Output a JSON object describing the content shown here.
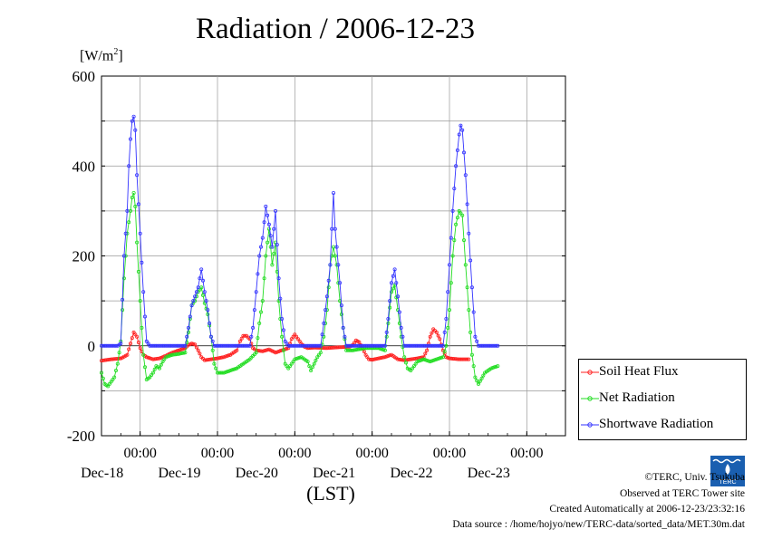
{
  "chart_data": {
    "type": "line",
    "title": "Radiation / 2006-12-23",
    "ylabel": "[W/m2]",
    "xlabel": "(LST)",
    "ylim": [
      -200,
      600
    ],
    "yticks": [
      "600",
      "400",
      "200",
      "0",
      "-200"
    ],
    "xticks": [
      {
        "time": "00:00",
        "date": "Dec-18"
      },
      {
        "time": "00:00",
        "date": "Dec-19"
      },
      {
        "time": "00:00",
        "date": "Dec-20"
      },
      {
        "time": "00:00",
        "date": "Dec-21"
      },
      {
        "time": "00:00",
        "date": "Dec-22"
      },
      {
        "time": "00:00",
        "date": "Dec-23"
      }
    ],
    "x_range_hours": [
      0,
      144
    ],
    "x_unit": "hours since 2006-12-17 12:00 LST",
    "grid": true,
    "legend_position": "bottom-right",
    "series": [
      {
        "name": "Soil Heat Flux",
        "color": "#ff2020",
        "points": [
          [
            0,
            -33
          ],
          [
            3,
            -30
          ],
          [
            6,
            -28
          ],
          [
            8,
            -20
          ],
          [
            9,
            5
          ],
          [
            10,
            30
          ],
          [
            11,
            20
          ],
          [
            12,
            -5
          ],
          [
            13,
            -20
          ],
          [
            14,
            -25
          ],
          [
            16,
            -30
          ],
          [
            18,
            -28
          ],
          [
            20,
            -22
          ],
          [
            22,
            -15
          ],
          [
            24,
            -10
          ],
          [
            26,
            -5
          ],
          [
            27,
            2
          ],
          [
            28,
            5
          ],
          [
            29,
            3
          ],
          [
            30,
            -10
          ],
          [
            31,
            -25
          ],
          [
            32,
            -32
          ],
          [
            34,
            -30
          ],
          [
            36,
            -28
          ],
          [
            38,
            -25
          ],
          [
            40,
            -20
          ],
          [
            42,
            -10
          ],
          [
            43,
            10
          ],
          [
            44,
            22
          ],
          [
            45,
            22
          ],
          [
            46,
            15
          ],
          [
            47,
            -5
          ],
          [
            48,
            -10
          ],
          [
            50,
            -12
          ],
          [
            52,
            -8
          ],
          [
            54,
            -15
          ],
          [
            56,
            -10
          ],
          [
            58,
            -5
          ],
          [
            59,
            15
          ],
          [
            60,
            25
          ],
          [
            61,
            15
          ],
          [
            62,
            5
          ],
          [
            63,
            -2
          ],
          [
            64,
            -5
          ],
          [
            66,
            -4
          ],
          [
            70,
            -5
          ],
          [
            74,
            -3
          ],
          [
            77,
            -2
          ],
          [
            78,
            2
          ],
          [
            79,
            12
          ],
          [
            80,
            8
          ],
          [
            81,
            -5
          ],
          [
            82,
            -20
          ],
          [
            83,
            -30
          ],
          [
            84,
            -31
          ],
          [
            86,
            -28
          ],
          [
            88,
            -25
          ],
          [
            90,
            -20
          ],
          [
            92,
            -30
          ],
          [
            94,
            -32
          ],
          [
            96,
            -30
          ],
          [
            98,
            -28
          ],
          [
            100,
            -25
          ],
          [
            101,
            -10
          ],
          [
            102,
            20
          ],
          [
            103,
            37
          ],
          [
            104,
            30
          ],
          [
            105,
            15
          ],
          [
            106,
            -10
          ],
          [
            107,
            -25
          ],
          [
            108,
            -28
          ],
          [
            111,
            -30
          ],
          [
            114,
            -30
          ]
        ]
      },
      {
        "name": "Net Radiation",
        "color": "#22dd22",
        "points": [
          [
            0,
            -60
          ],
          [
            1,
            -85
          ],
          [
            2,
            -90
          ],
          [
            3,
            -80
          ],
          [
            4,
            -70
          ],
          [
            5,
            -40
          ],
          [
            6,
            10
          ],
          [
            7,
            150
          ],
          [
            8,
            250
          ],
          [
            9,
            300
          ],
          [
            9.5,
            330
          ],
          [
            10,
            340
          ],
          [
            10.5,
            310
          ],
          [
            11,
            230
          ],
          [
            12,
            100
          ],
          [
            13,
            -20
          ],
          [
            14,
            -75
          ],
          [
            15,
            -70
          ],
          [
            16,
            -60
          ],
          [
            17,
            -45
          ],
          [
            18,
            -50
          ],
          [
            19,
            -35
          ],
          [
            20,
            -25
          ],
          [
            22,
            -20
          ],
          [
            24,
            -18
          ],
          [
            26,
            -15
          ],
          [
            27,
            30
          ],
          [
            28,
            90
          ],
          [
            29,
            100
          ],
          [
            30,
            120
          ],
          [
            31,
            130
          ],
          [
            32,
            95
          ],
          [
            33,
            70
          ],
          [
            34,
            20
          ],
          [
            35,
            -40
          ],
          [
            36,
            -60
          ],
          [
            38,
            -60
          ],
          [
            40,
            -55
          ],
          [
            42,
            -50
          ],
          [
            44,
            -40
          ],
          [
            46,
            -30
          ],
          [
            48,
            -15
          ],
          [
            49,
            50
          ],
          [
            50,
            100
          ],
          [
            51,
            200
          ],
          [
            52,
            260
          ],
          [
            53,
            180
          ],
          [
            54,
            230
          ],
          [
            55,
            100
          ],
          [
            56,
            20
          ],
          [
            57,
            -40
          ],
          [
            58,
            -50
          ],
          [
            60,
            -30
          ],
          [
            62,
            -25
          ],
          [
            64,
            -35
          ],
          [
            65,
            -55
          ],
          [
            66,
            -40
          ],
          [
            67,
            -25
          ],
          [
            68,
            -15
          ],
          [
            69,
            20
          ],
          [
            70,
            80
          ],
          [
            71,
            180
          ],
          [
            72,
            220
          ],
          [
            73,
            180
          ],
          [
            74,
            100
          ],
          [
            75,
            40
          ],
          [
            76,
            -10
          ],
          [
            78,
            -10
          ],
          [
            82,
            -5
          ],
          [
            86,
            -5
          ],
          [
            88,
            -10
          ],
          [
            89,
            50
          ],
          [
            90,
            120
          ],
          [
            91,
            135
          ],
          [
            92,
            80
          ],
          [
            93,
            20
          ],
          [
            94,
            -25
          ],
          [
            95,
            -50
          ],
          [
            96,
            -55
          ],
          [
            98,
            -35
          ],
          [
            100,
            -30
          ],
          [
            102,
            -35
          ],
          [
            104,
            -30
          ],
          [
            106,
            -25
          ],
          [
            107,
            0
          ],
          [
            108,
            80
          ],
          [
            109,
            200
          ],
          [
            110,
            270
          ],
          [
            111,
            300
          ],
          [
            112,
            290
          ],
          [
            113,
            180
          ],
          [
            114,
            80
          ],
          [
            115,
            -20
          ],
          [
            116,
            -70
          ],
          [
            117,
            -85
          ],
          [
            119,
            -60
          ],
          [
            121,
            -50
          ],
          [
            123,
            -45
          ]
        ]
      },
      {
        "name": "Shortwave Radiation",
        "color": "#3333ff",
        "points": [
          [
            0,
            0
          ],
          [
            5,
            0
          ],
          [
            6,
            5
          ],
          [
            7,
            200
          ],
          [
            8,
            300
          ],
          [
            8.5,
            400
          ],
          [
            9,
            460
          ],
          [
            9.5,
            500
          ],
          [
            10,
            510
          ],
          [
            10.5,
            480
          ],
          [
            11,
            380
          ],
          [
            12,
            250
          ],
          [
            13,
            120
          ],
          [
            14,
            10
          ],
          [
            15,
            0
          ],
          [
            26,
            0
          ],
          [
            27,
            40
          ],
          [
            28,
            90
          ],
          [
            29,
            110
          ],
          [
            30,
            130
          ],
          [
            31,
            170
          ],
          [
            32,
            120
          ],
          [
            33,
            80
          ],
          [
            34,
            20
          ],
          [
            35,
            0
          ],
          [
            46,
            0
          ],
          [
            47,
            40
          ],
          [
            48,
            120
          ],
          [
            49,
            200
          ],
          [
            50,
            240
          ],
          [
            51,
            310
          ],
          [
            52,
            270
          ],
          [
            53,
            220
          ],
          [
            54,
            300
          ],
          [
            55,
            150
          ],
          [
            56,
            60
          ],
          [
            57,
            10
          ],
          [
            58,
            0
          ],
          [
            68,
            0
          ],
          [
            69,
            50
          ],
          [
            70,
            110
          ],
          [
            71,
            180
          ],
          [
            71.5,
            260
          ],
          [
            72,
            340
          ],
          [
            72.5,
            260
          ],
          [
            73,
            220
          ],
          [
            74,
            140
          ],
          [
            75,
            40
          ],
          [
            76,
            0
          ],
          [
            88,
            0
          ],
          [
            89,
            60
          ],
          [
            90,
            140
          ],
          [
            91,
            170
          ],
          [
            92,
            110
          ],
          [
            93,
            40
          ],
          [
            94,
            0
          ],
          [
            106,
            0
          ],
          [
            107,
            60
          ],
          [
            108,
            180
          ],
          [
            109,
            300
          ],
          [
            110,
            400
          ],
          [
            111,
            470
          ],
          [
            111.5,
            490
          ],
          [
            112,
            480
          ],
          [
            113,
            380
          ],
          [
            114,
            250
          ],
          [
            115,
            130
          ],
          [
            116,
            20
          ],
          [
            117,
            0
          ],
          [
            123,
            0
          ]
        ]
      }
    ],
    "legend": [
      "Soil Heat Flux",
      "Net Radiation",
      "Shortwave Radiation"
    ]
  },
  "footer": {
    "copyright": "©TERC, Univ. Tsukuba",
    "observed": "Observed at TERC Tower site",
    "created": "Created Automatically at 2006-12-23/23:32:16",
    "source": "Data source : /home/hojyo/new/TERC-data/sorted_data/MET.30m.dat"
  },
  "logo_text": "TERC"
}
